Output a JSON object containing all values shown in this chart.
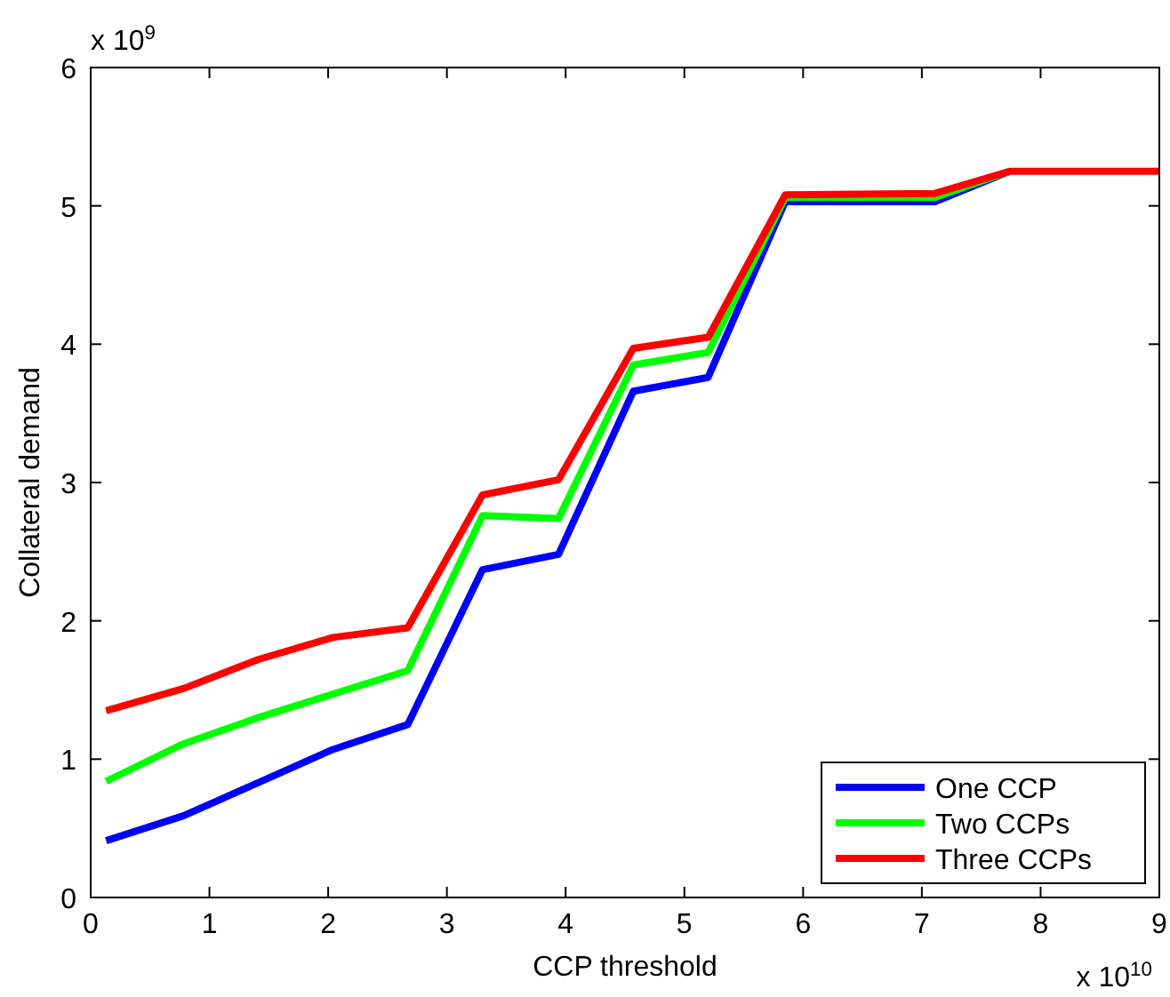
{
  "chart_data": {
    "type": "line",
    "xlabel": "CCP threshold",
    "ylabel": "Collateral demand",
    "x": [
      0.13,
      0.78,
      1.41,
      2.04,
      2.67,
      3.3,
      3.94,
      4.57,
      5.2,
      5.85,
      7.11,
      7.74,
      9.0
    ],
    "series": [
      {
        "name": "One CCP",
        "color": "#0000ff",
        "values": [
          0.41,
          0.59,
          0.83,
          1.07,
          1.25,
          2.37,
          2.48,
          3.66,
          3.76,
          5.03,
          5.03,
          5.25,
          null
        ]
      },
      {
        "name": "Two CCPs",
        "color": "#00ff00",
        "values": [
          0.84,
          1.11,
          1.3,
          1.47,
          1.64,
          2.76,
          2.74,
          3.85,
          3.94,
          5.06,
          5.06,
          5.25,
          null
        ]
      },
      {
        "name": "Three CCPs",
        "color": "#ff0000",
        "values": [
          1.35,
          1.51,
          1.72,
          1.88,
          1.95,
          2.91,
          3.02,
          3.97,
          4.05,
          5.08,
          5.09,
          5.25,
          5.25
        ]
      }
    ],
    "xlim": [
      0,
      9
    ],
    "xticks": [
      0,
      1,
      2,
      3,
      4,
      5,
      6,
      7,
      8,
      9
    ],
    "ylim": [
      0,
      6
    ],
    "yticks": [
      0,
      1,
      2,
      3,
      4,
      5,
      6
    ],
    "annotations": [
      "x 10$^{9}$",
      "x 10$^{10}$"
    ],
    "grid": false,
    "legend": "bottom right",
    "marker": "none",
    "line_style": "solid"
  }
}
